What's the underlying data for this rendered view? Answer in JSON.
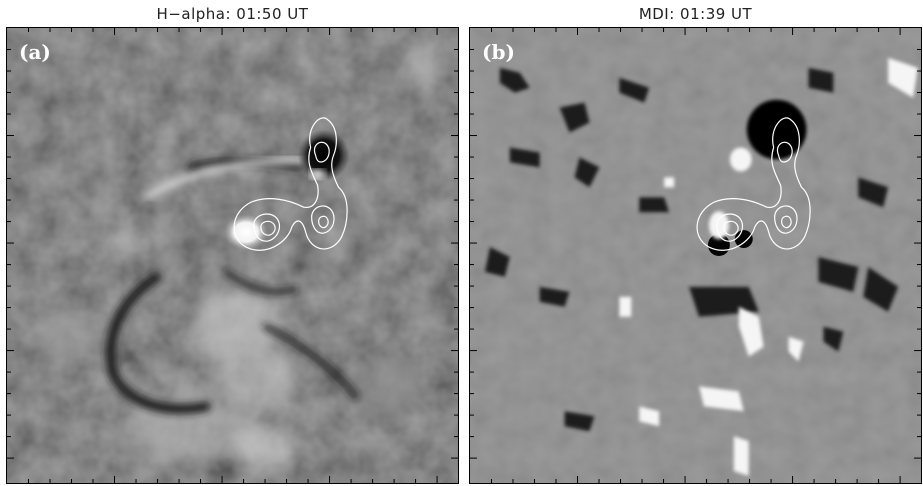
{
  "panels": [
    {
      "title": "H−alpha: 01:50 UT",
      "label": "(a)",
      "kind": "h-alpha image",
      "background": "#5a5a5a"
    },
    {
      "title": "MDI: 01:39 UT",
      "label": "(b)",
      "kind": "magnetogram",
      "background": "#8c8c8c"
    }
  ],
  "colors": {
    "contour": "#ffffff",
    "frame": "#000000"
  }
}
